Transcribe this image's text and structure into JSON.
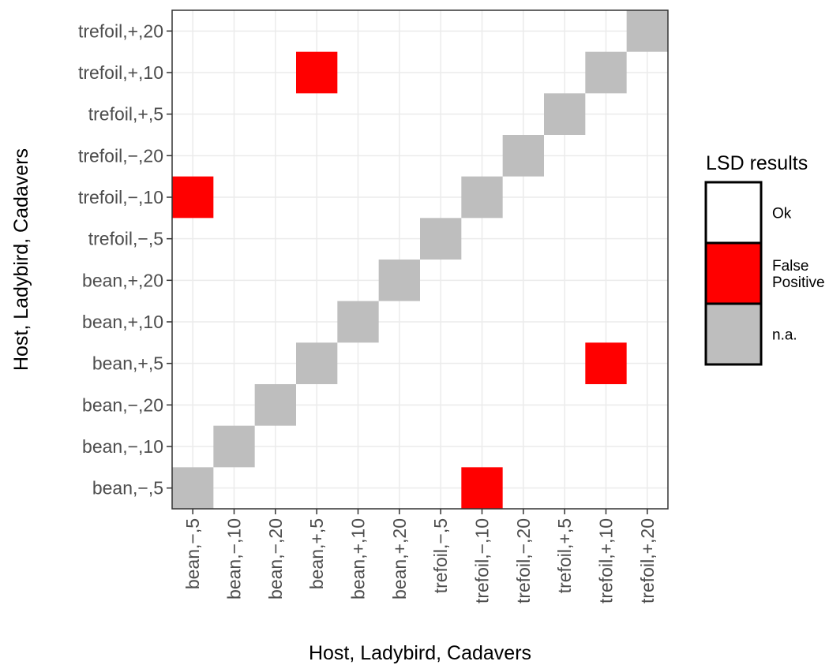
{
  "chart_data": {
    "type": "heatmap",
    "xlabel": "Host, Ladybird, Cadavers",
    "ylabel": "Host, Ladybird, Cadavers",
    "categories": [
      "bean,−,5",
      "bean,−,10",
      "bean,−,20",
      "bean,+,5",
      "bean,+,10",
      "bean,+,20",
      "trefoil,−,5",
      "trefoil,−,10",
      "trefoil,−,20",
      "trefoil,+,5",
      "trefoil,+,10",
      "trefoil,+,20"
    ],
    "cells": [
      {
        "x": "bean,−,5",
        "y": "bean,−,5",
        "value": "n.a."
      },
      {
        "x": "bean,−,10",
        "y": "bean,−,10",
        "value": "n.a."
      },
      {
        "x": "bean,−,20",
        "y": "bean,−,20",
        "value": "n.a."
      },
      {
        "x": "bean,+,5",
        "y": "bean,+,5",
        "value": "n.a."
      },
      {
        "x": "bean,+,10",
        "y": "bean,+,10",
        "value": "n.a."
      },
      {
        "x": "bean,+,20",
        "y": "bean,+,20",
        "value": "n.a."
      },
      {
        "x": "trefoil,−,5",
        "y": "trefoil,−,5",
        "value": "n.a."
      },
      {
        "x": "trefoil,−,10",
        "y": "trefoil,−,10",
        "value": "n.a."
      },
      {
        "x": "trefoil,−,20",
        "y": "trefoil,−,20",
        "value": "n.a."
      },
      {
        "x": "trefoil,+,5",
        "y": "trefoil,+,5",
        "value": "n.a."
      },
      {
        "x": "trefoil,+,10",
        "y": "trefoil,+,10",
        "value": "n.a."
      },
      {
        "x": "trefoil,+,20",
        "y": "trefoil,+,20",
        "value": "n.a."
      },
      {
        "x": "bean,+,5",
        "y": "trefoil,+,10",
        "value": "False Positive"
      },
      {
        "x": "bean,−,5",
        "y": "trefoil,−,10",
        "value": "False Positive"
      },
      {
        "x": "trefoil,+,10",
        "y": "bean,+,5",
        "value": "False Positive"
      },
      {
        "x": "trefoil,−,10",
        "y": "bean,−,5",
        "value": "False Positive"
      }
    ],
    "default_value": "Ok",
    "legend": {
      "title": "LSD results",
      "position": "right",
      "entries": [
        {
          "label": "Ok",
          "color": "#ffffff"
        },
        {
          "label": "False Positive",
          "color": "#ff0000"
        },
        {
          "label": "n.a.",
          "color": "#bebebe"
        }
      ]
    },
    "grid": true
  }
}
